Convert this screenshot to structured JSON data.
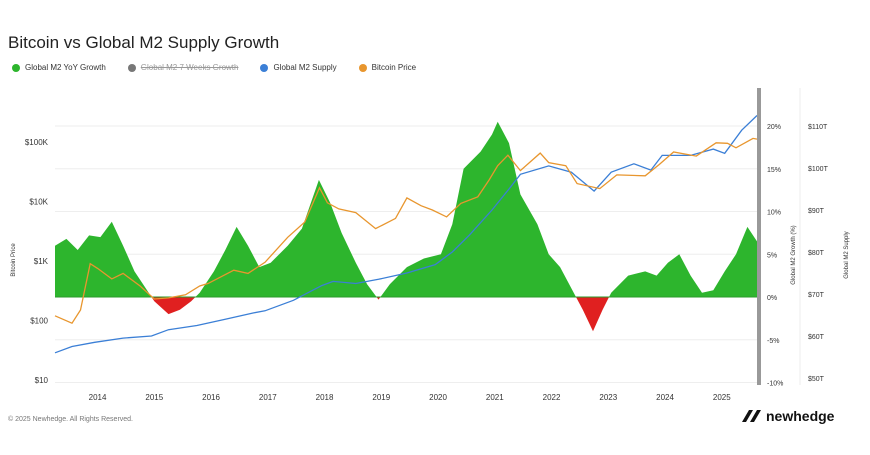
{
  "chart_data": {
    "type": "line",
    "title": "Bitcoin vs Global M2 Supply Growth",
    "legend": [
      {
        "name": "Global M2 YoY Growth",
        "color": "#2db52d",
        "hidden": false
      },
      {
        "name": "Global M2 7 Weeks Growth",
        "color": "#777777",
        "hidden": true
      },
      {
        "name": "Global M2 Supply",
        "color": "#3b7fd6",
        "hidden": false
      },
      {
        "name": "Bitcoin Price",
        "color": "#e8962e",
        "hidden": false
      }
    ],
    "legend_placement": "top-left",
    "negative_color": "#e02020",
    "x_ticks": [
      "2014",
      "2015",
      "2016",
      "2017",
      "2018",
      "2019",
      "2020",
      "2021",
      "2022",
      "2023",
      "2024",
      "2025"
    ],
    "xlim": [
      2013.3,
      2025.67
    ],
    "y_left": {
      "label": "Bitcoin Price",
      "scale": "log",
      "range": [
        10,
        300000
      ],
      "ticks": [
        "$10",
        "$100",
        "$1K",
        "$10K",
        "$100K"
      ]
    },
    "y_growth": {
      "label": "Global M2 Growth (%)",
      "range": [
        -10,
        20
      ],
      "ticks": [
        "20%",
        "15%",
        "10%",
        "5%",
        "0%",
        "-5%",
        "-10%"
      ]
    },
    "y_supply": {
      "label": "Global M2 Supply",
      "range": [
        50,
        110
      ],
      "ticks": [
        "$110T",
        "$100T",
        "$90T",
        "$80T",
        "$70T",
        "$60T",
        "$50T"
      ]
    },
    "grid": true,
    "series": [
      {
        "name": "Bitcoin Price",
        "axis": "left",
        "points": [
          [
            2013.3,
            120
          ],
          [
            2013.6,
            90
          ],
          [
            2013.75,
            150
          ],
          [
            2013.92,
            900
          ],
          [
            2014.05,
            750
          ],
          [
            2014.3,
            500
          ],
          [
            2014.5,
            620
          ],
          [
            2014.8,
            380
          ],
          [
            2015.05,
            230
          ],
          [
            2015.3,
            240
          ],
          [
            2015.6,
            270
          ],
          [
            2015.85,
            380
          ],
          [
            2016.0,
            420
          ],
          [
            2016.45,
            700
          ],
          [
            2016.7,
            620
          ],
          [
            2017.0,
            950
          ],
          [
            2017.4,
            2500
          ],
          [
            2017.7,
            4500
          ],
          [
            2017.96,
            17000
          ],
          [
            2018.1,
            9500
          ],
          [
            2018.3,
            7500
          ],
          [
            2018.6,
            6500
          ],
          [
            2018.95,
            3500
          ],
          [
            2019.3,
            5200
          ],
          [
            2019.5,
            11500
          ],
          [
            2019.75,
            8500
          ],
          [
            2019.95,
            7200
          ],
          [
            2020.2,
            5500
          ],
          [
            2020.45,
            9300
          ],
          [
            2020.75,
            12000
          ],
          [
            2020.95,
            23000
          ],
          [
            2021.1,
            40000
          ],
          [
            2021.28,
            60000
          ],
          [
            2021.5,
            33000
          ],
          [
            2021.85,
            65000
          ],
          [
            2022.0,
            45000
          ],
          [
            2022.3,
            40000
          ],
          [
            2022.5,
            20000
          ],
          [
            2022.9,
            16500
          ],
          [
            2023.2,
            28000
          ],
          [
            2023.7,
            27000
          ],
          [
            2023.95,
            42000
          ],
          [
            2024.2,
            68000
          ],
          [
            2024.6,
            58000
          ],
          [
            2024.95,
            97000
          ],
          [
            2025.15,
            95000
          ],
          [
            2025.3,
            80000
          ],
          [
            2025.6,
            115000
          ],
          [
            2025.67,
            112000
          ]
        ]
      },
      {
        "name": "Global M2 Supply",
        "axis": "supply",
        "points": [
          [
            2013.3,
            56
          ],
          [
            2013.6,
            57.5
          ],
          [
            2014.0,
            58.5
          ],
          [
            2014.5,
            59.5
          ],
          [
            2015.0,
            60
          ],
          [
            2015.3,
            61.5
          ],
          [
            2015.8,
            62.5
          ],
          [
            2016.3,
            64
          ],
          [
            2016.8,
            65.5
          ],
          [
            2017.0,
            66
          ],
          [
            2017.5,
            68.5
          ],
          [
            2018.0,
            72
          ],
          [
            2018.2,
            73
          ],
          [
            2018.6,
            72.5
          ],
          [
            2019.0,
            73.5
          ],
          [
            2019.5,
            75
          ],
          [
            2020.0,
            77
          ],
          [
            2020.3,
            80
          ],
          [
            2020.6,
            84
          ],
          [
            2021.0,
            90
          ],
          [
            2021.3,
            95
          ],
          [
            2021.5,
            98.5
          ],
          [
            2022.0,
            100.5
          ],
          [
            2022.4,
            99
          ],
          [
            2022.8,
            94.5
          ],
          [
            2023.1,
            99
          ],
          [
            2023.5,
            101
          ],
          [
            2023.8,
            99.5
          ],
          [
            2024.0,
            103
          ],
          [
            2024.5,
            103
          ],
          [
            2024.9,
            104.5
          ],
          [
            2025.1,
            103.5
          ],
          [
            2025.4,
            109
          ],
          [
            2025.67,
            112.5
          ]
        ]
      },
      {
        "name": "Global M2 YoY Growth",
        "axis": "growth",
        "points": [
          [
            2013.3,
            6
          ],
          [
            2013.5,
            6.8
          ],
          [
            2013.7,
            5.5
          ],
          [
            2013.9,
            7.2
          ],
          [
            2014.1,
            7
          ],
          [
            2014.3,
            8.8
          ],
          [
            2014.5,
            6
          ],
          [
            2014.7,
            3
          ],
          [
            2014.9,
            1
          ],
          [
            2015.05,
            -0.5
          ],
          [
            2015.3,
            -2
          ],
          [
            2015.5,
            -1.5
          ],
          [
            2015.7,
            -0.5
          ],
          [
            2015.85,
            0.5
          ],
          [
            2016.1,
            3
          ],
          [
            2016.3,
            5.5
          ],
          [
            2016.5,
            8.2
          ],
          [
            2016.7,
            6
          ],
          [
            2016.9,
            3.5
          ],
          [
            2017.1,
            4
          ],
          [
            2017.4,
            6
          ],
          [
            2017.65,
            8
          ],
          [
            2017.95,
            13.7
          ],
          [
            2018.15,
            11
          ],
          [
            2018.35,
            7.5
          ],
          [
            2018.6,
            4
          ],
          [
            2018.8,
            1.5
          ],
          [
            2019.0,
            -0.3
          ],
          [
            2019.2,
            1.5
          ],
          [
            2019.5,
            3.5
          ],
          [
            2019.8,
            4.5
          ],
          [
            2020.1,
            5
          ],
          [
            2020.3,
            8.5
          ],
          [
            2020.5,
            15
          ],
          [
            2020.8,
            17
          ],
          [
            2021.0,
            19
          ],
          [
            2021.1,
            20.5
          ],
          [
            2021.3,
            18
          ],
          [
            2021.5,
            12
          ],
          [
            2021.8,
            8.5
          ],
          [
            2022.0,
            5
          ],
          [
            2022.2,
            3.5
          ],
          [
            2022.4,
            1
          ],
          [
            2022.6,
            -1.5
          ],
          [
            2022.78,
            -4
          ],
          [
            2022.95,
            -1.5
          ],
          [
            2023.1,
            0.5
          ],
          [
            2023.4,
            2.5
          ],
          [
            2023.7,
            3
          ],
          [
            2023.9,
            2.5
          ],
          [
            2024.1,
            4
          ],
          [
            2024.3,
            5
          ],
          [
            2024.5,
            2.5
          ],
          [
            2024.7,
            0.5
          ],
          [
            2024.9,
            0.8
          ],
          [
            2025.1,
            3
          ],
          [
            2025.3,
            5
          ],
          [
            2025.5,
            8.2
          ],
          [
            2025.67,
            6.5
          ]
        ]
      }
    ]
  },
  "footer": {
    "copyright": "© 2025 Newhedge. All Rights Reserved.",
    "logo": "newhedge"
  }
}
